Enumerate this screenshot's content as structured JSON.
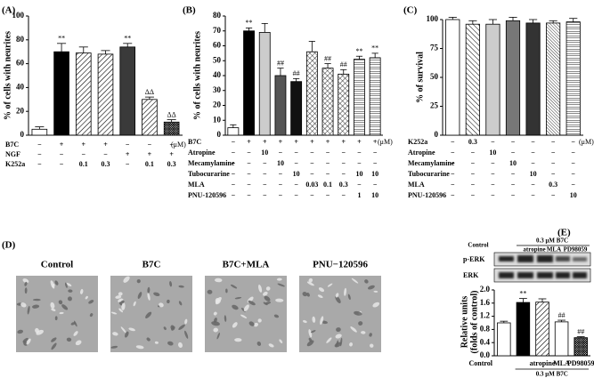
{
  "chart_data": [
    {
      "type": "bar",
      "panel": "(A)",
      "ylabel": "% of cells with neurites",
      "ylim": [
        0,
        100
      ],
      "yticks": [
        0,
        20,
        40,
        60,
        80,
        100
      ],
      "values": [
        5,
        70,
        69,
        68,
        74,
        30,
        11
      ],
      "errors": [
        2,
        7,
        5,
        3,
        3,
        2,
        2
      ],
      "annotations": [
        null,
        "**",
        null,
        null,
        "**",
        "ΔΔ",
        "ΔΔ"
      ],
      "fills": [
        "#ffffff",
        "#000000",
        "hatch-diag",
        "hatch-diag",
        "#3a3a3a",
        "hatch-diag",
        "hatch-dense"
      ],
      "table": {
        "unit": "(μM)",
        "rows": [
          {
            "label": "B7C",
            "cells": [
              "−",
              "+",
              "+",
              "+",
              "−",
              "−",
              "−"
            ]
          },
          {
            "label": "NGF",
            "cells": [
              "−",
              "−",
              "−",
              "−",
              "+",
              "+",
              "+"
            ]
          },
          {
            "label": "K252a",
            "cells": [
              "−",
              "−",
              "0.1",
              "0.3",
              "−",
              "0.1",
              "0.3"
            ]
          }
        ]
      }
    },
    {
      "type": "bar",
      "panel": "(B)",
      "ylabel": "% of cells with neurites",
      "ylim": [
        0,
        80
      ],
      "yticks": [
        0,
        10,
        20,
        30,
        40,
        50,
        60,
        70,
        80
      ],
      "values": [
        5,
        70,
        69,
        40,
        36,
        56,
        45,
        41,
        51,
        52
      ],
      "errors": [
        2,
        2,
        6,
        5,
        2,
        7,
        3,
        3,
        2,
        3
      ],
      "annotations": [
        null,
        "**",
        null,
        "##",
        "##",
        null,
        "##",
        "##",
        "**",
        "**"
      ],
      "fills": [
        "#ffffff",
        "#000000",
        "#cccccc",
        "#555555",
        "#111111",
        "hatch-cross",
        "hatch-cross",
        "hatch-cross",
        "hatch-horiz",
        "hatch-horiz"
      ],
      "table": {
        "unit": "(μM)",
        "rows": [
          {
            "label": "B7C",
            "cells": [
              "−",
              "+",
              "+",
              "+",
              "+",
              "+",
              "+",
              "+",
              "+",
              "+"
            ]
          },
          {
            "label": "Atropine",
            "cells": [
              "−",
              "−",
              "10",
              "−",
              "−",
              "−",
              "−",
              "−",
              "−",
              "−"
            ]
          },
          {
            "label": "Mecamylamine",
            "cells": [
              "−",
              "−",
              "−",
              "10",
              "−",
              "−",
              "−",
              "−",
              "−",
              "−"
            ]
          },
          {
            "label": "Tubocurarine",
            "cells": [
              "−",
              "−",
              "−",
              "−",
              "10",
              "−",
              "−",
              "−",
              "10",
              "10"
            ]
          },
          {
            "label": "MLA",
            "cells": [
              "−",
              "−",
              "−",
              "−",
              "−",
              "0.03",
              "0.1",
              "0.3",
              "−",
              "−"
            ]
          },
          {
            "label": "PNU-120596",
            "cells": [
              "−",
              "−",
              "−",
              "−",
              "−",
              "−",
              "−",
              "−",
              "1",
              "10"
            ]
          }
        ]
      }
    },
    {
      "type": "bar",
      "panel": "(C)",
      "ylabel": "% of survival",
      "ylim": [
        0,
        100
      ],
      "yticks": [
        0,
        25,
        50,
        75,
        100
      ],
      "values": [
        100,
        96,
        96,
        99,
        97,
        97,
        98
      ],
      "errors": [
        2,
        3,
        4,
        3,
        3,
        2,
        3
      ],
      "fills": [
        "#ffffff",
        "hatch-diag2",
        "#cccccc",
        "#777777",
        "#333333",
        "hatch-fine",
        "hatch-horiz"
      ],
      "table": {
        "unit": "(μM)",
        "rows": [
          {
            "label": "K252a",
            "cells": [
              "−",
              "0.3",
              "−",
              "−",
              "−",
              "−",
              "−"
            ]
          },
          {
            "label": "Atropine",
            "cells": [
              "−",
              "−",
              "10",
              "−",
              "−",
              "−",
              "−"
            ]
          },
          {
            "label": "Mecamylamine",
            "cells": [
              "−",
              "−",
              "−",
              "10",
              "−",
              "−",
              "−"
            ]
          },
          {
            "label": "Tubocurarine",
            "cells": [
              "−",
              "−",
              "−",
              "−",
              "10",
              "−",
              "−"
            ]
          },
          {
            "label": "MLA",
            "cells": [
              "−",
              "−",
              "−",
              "−",
              "−",
              "0.3",
              "−"
            ]
          },
          {
            "label": "PNU-120596",
            "cells": [
              "−",
              "−",
              "−",
              "−",
              "−",
              "−",
              "10"
            ]
          }
        ]
      }
    },
    {
      "type": "bar",
      "panel": "(E)",
      "ylabel": [
        "Relative units",
        "(folds of control)"
      ],
      "ylim": [
        0,
        2
      ],
      "yticks": [
        {
          "value": 0,
          "label": "0.0"
        },
        0.4,
        0.8,
        1.2,
        1.6,
        {
          "value": 2,
          "label": "2.0"
        }
      ],
      "categories": [
        "Control",
        null,
        "atropine",
        "MLA",
        "PD98059"
      ],
      "group_label": "0.3 μM B7C",
      "values": [
        1.0,
        1.62,
        1.63,
        1.03,
        0.55
      ],
      "errors": [
        0.05,
        0.12,
        0.1,
        0.05,
        0.03
      ],
      "annotations": [
        null,
        "**",
        null,
        "##",
        "##"
      ],
      "fills": [
        "#ffffff",
        "#000000",
        "hatch-diag",
        "#ffffff",
        "hatch-dense"
      ]
    }
  ],
  "panel_d": {
    "letter": "(D)",
    "images": [
      "Control",
      "B7C",
      "B7C+MLA",
      "PNU−120596"
    ]
  },
  "blot": {
    "columns": [
      "Control",
      "atropine",
      "MLA",
      "PD98059"
    ],
    "group_label": "0.3 μM B7C",
    "rows": [
      "p-ERK",
      "ERK"
    ]
  }
}
